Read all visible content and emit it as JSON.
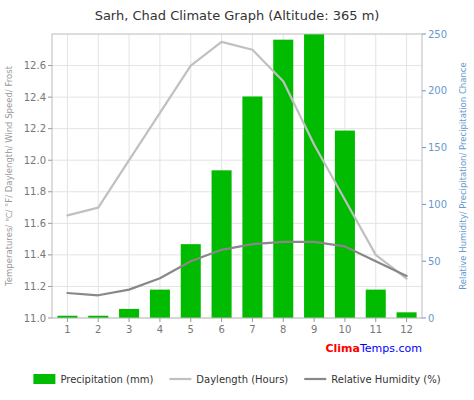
{
  "chart_data": {
    "type": "bar",
    "title": "Sarh, Chad Climate Graph (Altitude: 365 m)",
    "categories": [
      "1",
      "2",
      "3",
      "4",
      "5",
      "6",
      "7",
      "8",
      "9",
      "10",
      "11",
      "12"
    ],
    "series": [
      {
        "name": "Precipitation (mm)",
        "type": "bar",
        "color": "#00bb00",
        "axis": "y2",
        "values": [
          2,
          2,
          8,
          25,
          65,
          130,
          195,
          245,
          250,
          165,
          25,
          5
        ]
      },
      {
        "name": "Daylength (Hours)",
        "type": "line",
        "color": "#c0c0c0",
        "values": [
          11.65,
          11.7,
          12.0,
          12.3,
          12.6,
          12.75,
          12.7,
          12.5,
          12.1,
          11.75,
          11.4,
          11.25
        ]
      },
      {
        "name": "Relative Humidity (%)",
        "type": "line",
        "color": "#888888",
        "axis": "y2",
        "values": [
          22,
          20,
          25,
          35,
          50,
          60,
          65,
          67,
          67,
          63,
          50,
          37
        ]
      }
    ],
    "ylabel": "Temperatures/ ℃/ °F/ Daylength/ Wind Speed/ Frost",
    "y2label": "Relative Humidity/ Precipitation/ Precipitation Chance",
    "ylim": [
      11.0,
      12.8
    ],
    "yticks": [
      {
        "value": 11.0,
        "label": "11.0"
      },
      11.2,
      11.4,
      11.6,
      11.8,
      {
        "value": 12.0,
        "label": "12.0"
      },
      12.2,
      12.4,
      12.6
    ],
    "y2lim": [
      0,
      250
    ],
    "y2ticks": [
      0,
      50,
      100,
      150,
      200,
      250
    ],
    "grid": true,
    "legend": "bottom",
    "annotations": [
      {
        "text": "Clima",
        "color": "#ff0000"
      },
      {
        "text": "Temps.com",
        "color": "#0000ff"
      }
    ]
  }
}
